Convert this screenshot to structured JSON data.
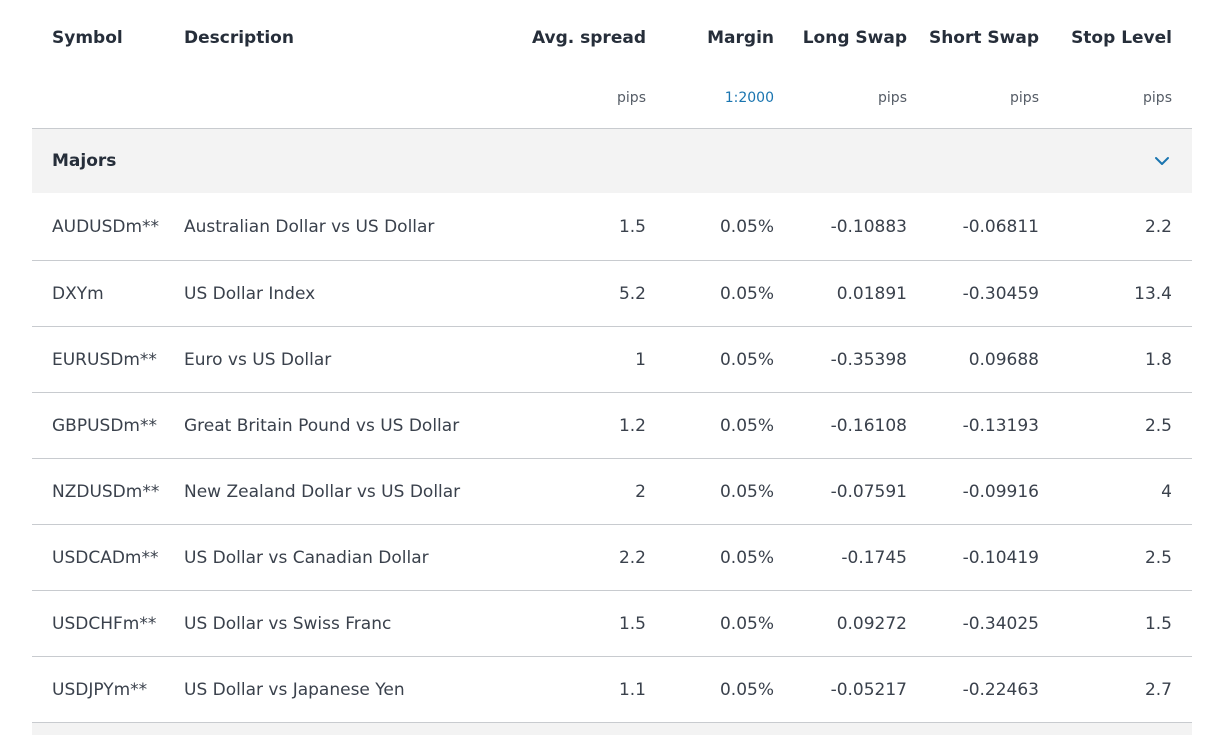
{
  "header": {
    "symbol": "Symbol",
    "description": "Description",
    "avg_spread": "Avg. spread",
    "margin": "Margin",
    "long_swap": "Long Swap",
    "short_swap": "Short Swap",
    "stop_level": "Stop Level"
  },
  "units": {
    "avg_spread": "pips",
    "margin": "1:2000",
    "long_swap": "pips",
    "short_swap": "pips",
    "stop_level": "pips"
  },
  "group": {
    "label": "Majors",
    "expanded_icon": "chevron-down-icon"
  },
  "colors": {
    "accent": "#1a75b0",
    "group_background": "#f3f3f3",
    "divider": "#c8cbcf"
  },
  "rows": [
    {
      "symbol": "AUDUSDm**",
      "description": "Australian Dollar vs US Dollar",
      "avg_spread": "1.5",
      "margin": "0.05%",
      "long_swap": "-0.10883",
      "short_swap": "-0.06811",
      "stop_level": "2.2"
    },
    {
      "symbol": "DXYm",
      "description": "US Dollar Index",
      "avg_spread": "5.2",
      "margin": "0.05%",
      "long_swap": "0.01891",
      "short_swap": "-0.30459",
      "stop_level": "13.4"
    },
    {
      "symbol": "EURUSDm**",
      "description": "Euro vs US Dollar",
      "avg_spread": "1",
      "margin": "0.05%",
      "long_swap": "-0.35398",
      "short_swap": "0.09688",
      "stop_level": "1.8"
    },
    {
      "symbol": "GBPUSDm**",
      "description": "Great Britain Pound vs US Dollar",
      "avg_spread": "1.2",
      "margin": "0.05%",
      "long_swap": "-0.16108",
      "short_swap": "-0.13193",
      "stop_level": "2.5"
    },
    {
      "symbol": "NZDUSDm**",
      "description": "New Zealand Dollar vs US Dollar",
      "avg_spread": "2",
      "margin": "0.05%",
      "long_swap": "-0.07591",
      "short_swap": "-0.09916",
      "stop_level": "4"
    },
    {
      "symbol": "USDCADm**",
      "description": "US Dollar vs Canadian Dollar",
      "avg_spread": "2.2",
      "margin": "0.05%",
      "long_swap": "-0.1745",
      "short_swap": "-0.10419",
      "stop_level": "2.5"
    },
    {
      "symbol": "USDCHFm**",
      "description": "US Dollar vs Swiss Franc",
      "avg_spread": "1.5",
      "margin": "0.05%",
      "long_swap": "0.09272",
      "short_swap": "-0.34025",
      "stop_level": "1.5"
    },
    {
      "symbol": "USDJPYm**",
      "description": "US Dollar vs Japanese Yen",
      "avg_spread": "1.1",
      "margin": "0.05%",
      "long_swap": "-0.05217",
      "short_swap": "-0.22463",
      "stop_level": "2.7"
    }
  ]
}
